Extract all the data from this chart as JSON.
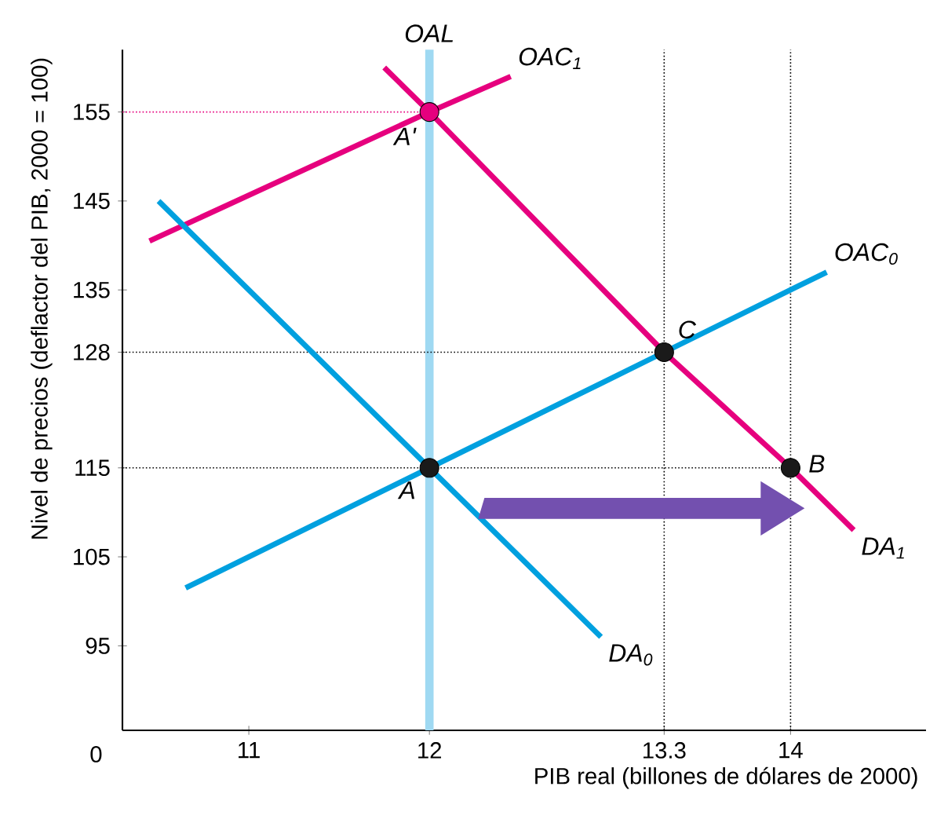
{
  "chart_data": {
    "type": "line",
    "xlabel": "PIB real (billones de dólares de 2000)",
    "ylabel": "Nivel de precios (deflactor del PIB, 2000 = 100)",
    "xlim": [
      10.3,
      14.75
    ],
    "ylim": [
      85.5,
      162
    ],
    "xticks": [
      11,
      12,
      13.3,
      14
    ],
    "yticks": [
      95,
      105,
      115,
      128,
      135,
      145,
      155
    ],
    "grid": false,
    "series": [
      {
        "name": "OAL",
        "color": "#9fd9f2",
        "x": [
          12,
          12
        ],
        "values": [
          85.5,
          162
        ]
      },
      {
        "color": "#e6007e",
        "line_style": "dotted",
        "x": [
          10.3,
          12
        ],
        "values": [
          155,
          155
        ]
      },
      {
        "color": "#000000",
        "line_style": "dotted",
        "x": [
          10.3,
          13.3
        ],
        "values": [
          128,
          128
        ]
      },
      {
        "color": "#000000",
        "line_style": "dotted",
        "x": [
          10.3,
          14
        ],
        "values": [
          115,
          115
        ]
      },
      {
        "color": "#000000",
        "line_style": "dotted",
        "x": [
          13.3,
          13.3
        ],
        "values": [
          85.5,
          162
        ]
      },
      {
        "color": "#000000",
        "line_style": "dotted",
        "x": [
          14,
          14
        ],
        "values": [
          85.5,
          162
        ]
      },
      {
        "name": "OAC$_{0}$",
        "color": "#00a0df",
        "x": [
          10.65,
          12,
          13.3,
          14.2
        ],
        "values": [
          101.5,
          115,
          128,
          137
        ]
      },
      {
        "name": "OAC$_{1}$",
        "color": "#e6007e",
        "x": [
          10.45,
          12,
          12.45
        ],
        "values": [
          140.5,
          155,
          159
        ]
      },
      {
        "name": "DA$_{0}$",
        "color": "#00a0df",
        "x": [
          10.5,
          12,
          12.95
        ],
        "values": [
          145,
          115,
          96
        ]
      },
      {
        "name": "DA$_{1}$",
        "color": "#e6007e",
        "x": [
          11.75,
          12,
          13.3,
          14,
          14.35
        ],
        "values": [
          160,
          155,
          128,
          115,
          108
        ]
      },
      {
        "type": "scatter",
        "color": "#1a1a1a",
        "x": [
          12,
          13.3,
          14
        ],
        "values": [
          115,
          128,
          115
        ]
      },
      {
        "type": "scatter",
        "color": "#e6007e",
        "x": [
          12
        ],
        "values": [
          155
        ]
      }
    ],
    "annotations": [
      {
        "text": "A",
        "x": 12,
        "y": 115
      },
      {
        "text": "A'",
        "x": 12,
        "y": 155
      },
      {
        "text": "C",
        "x": 13.3,
        "y": 128
      },
      {
        "text": "B",
        "x": 14,
        "y": 115
      },
      "0"
    ]
  }
}
